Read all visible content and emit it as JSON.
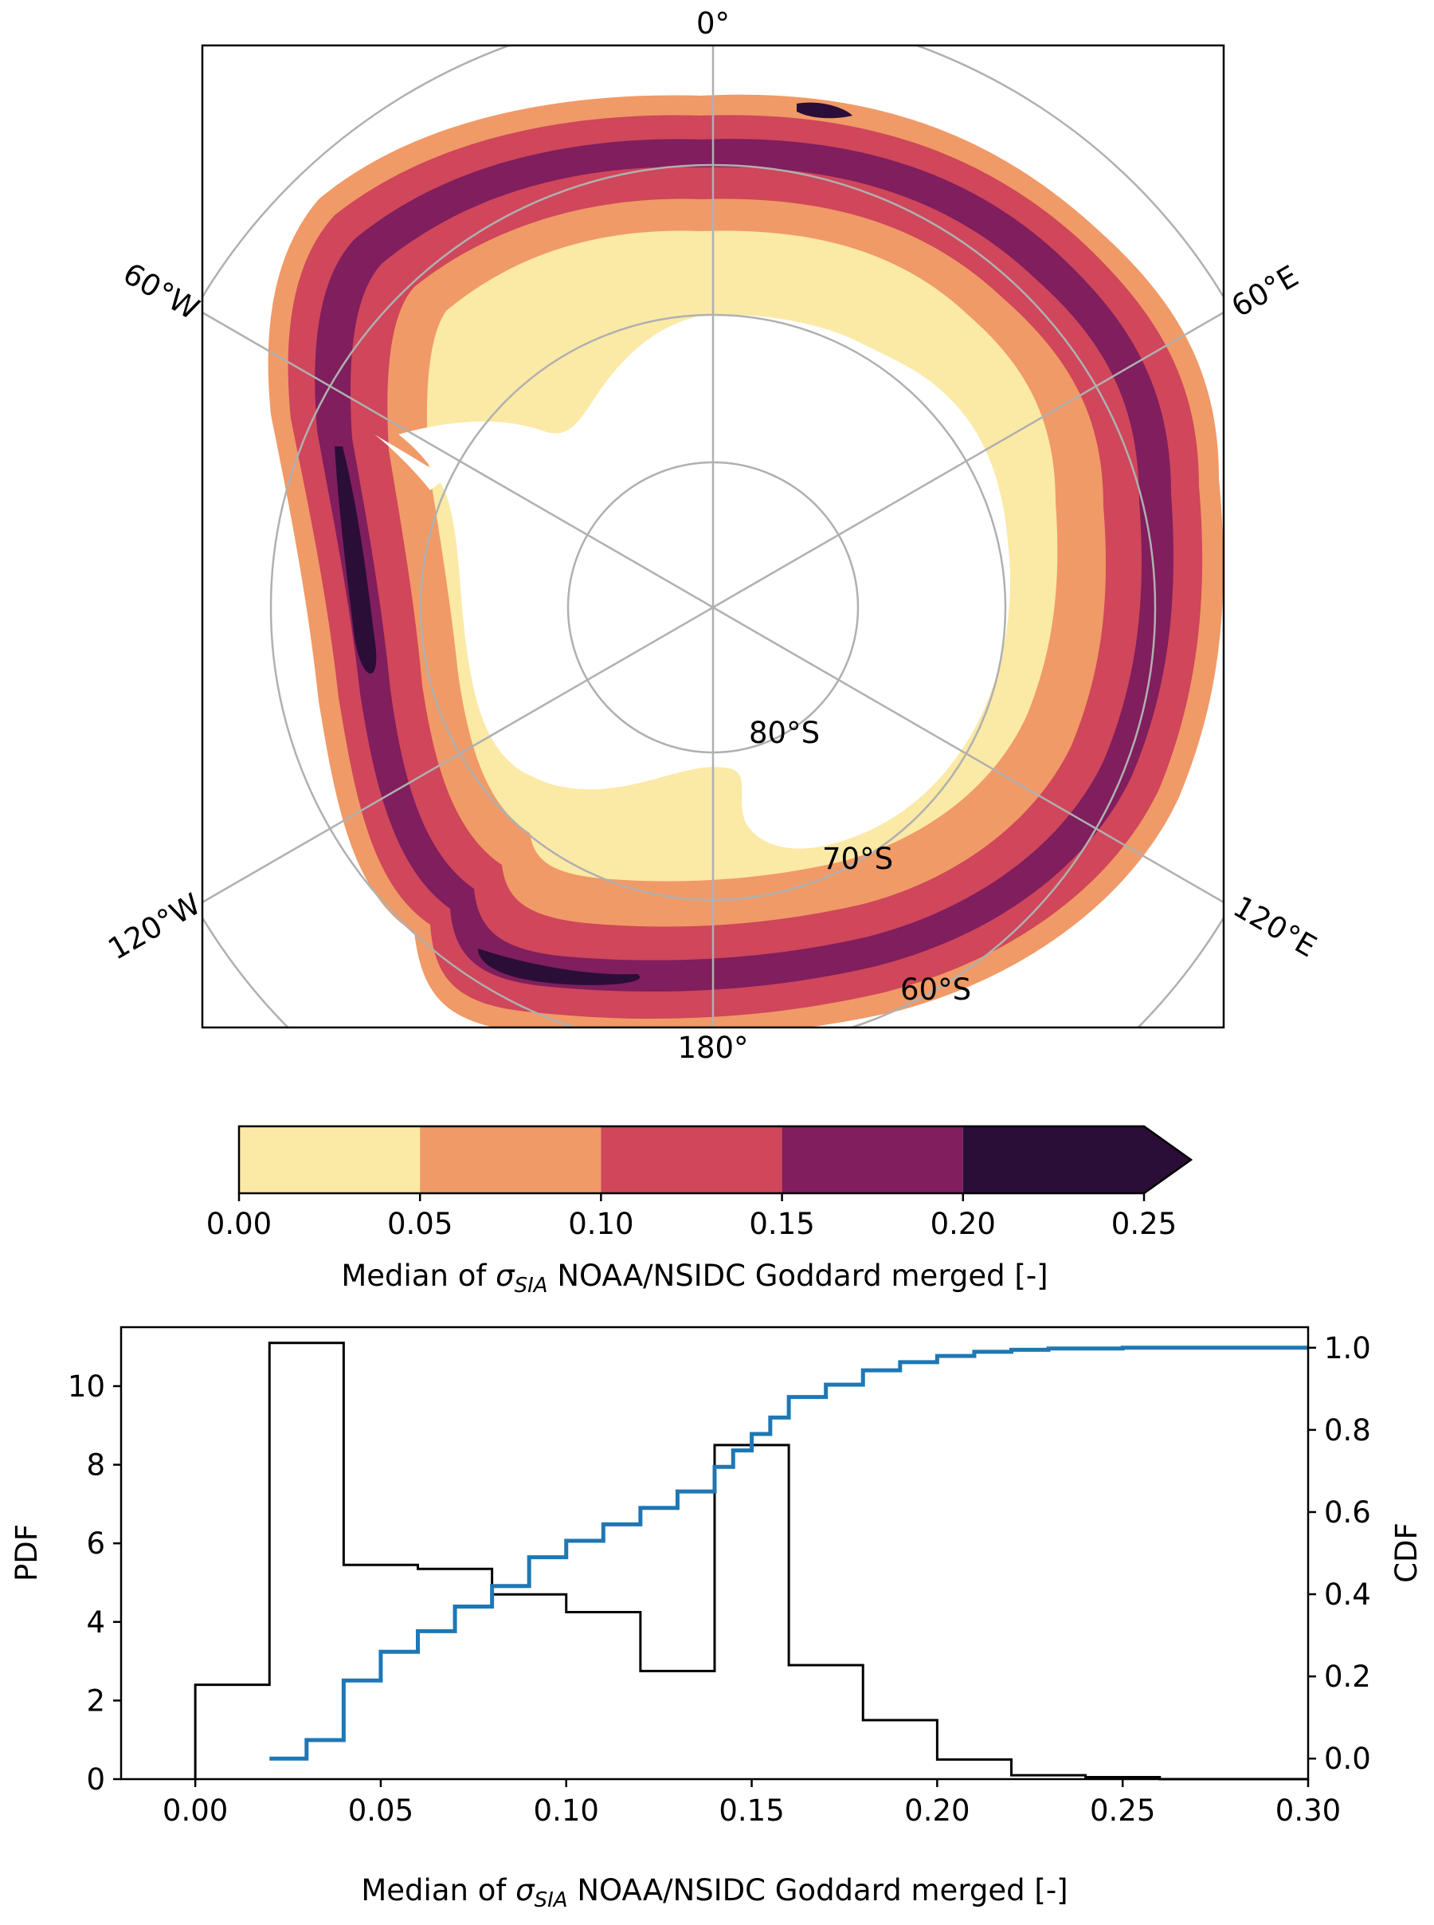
{
  "map": {
    "lon_labels": {
      "top": "0°",
      "upper_right": "60°E",
      "lower_right": "120°E",
      "bottom": "180°",
      "lower_left": "120°W",
      "upper_left": "60°W"
    },
    "lat_labels": [
      "80°S",
      "70°S",
      "60°S"
    ],
    "colors": {
      "frame": "#000000",
      "grid": "#b0b0b0",
      "background": "#ffffff"
    }
  },
  "colorbar": {
    "ticks": [
      "0.00",
      "0.05",
      "0.10",
      "0.15",
      "0.20",
      "0.25"
    ],
    "label_prefix": "Median of ",
    "label_symbol": "σ",
    "label_subscript": "SIA",
    "label_suffix": " NOAA/NSIDC Goddard merged [-]",
    "bins": [
      {
        "from": 0.0,
        "to": 0.05,
        "color": "#fbe9a6"
      },
      {
        "from": 0.05,
        "to": 0.1,
        "color": "#f09a67"
      },
      {
        "from": 0.1,
        "to": 0.15,
        "color": "#d0465a"
      },
      {
        "from": 0.15,
        "to": 0.2,
        "color": "#801e5e"
      },
      {
        "from": 0.2,
        "to": 0.25,
        "color": "#2a0e37"
      }
    ],
    "extend": "max"
  },
  "chart_data": {
    "type": "line",
    "xlabel_prefix": "Median of ",
    "xlabel_symbol": "σ",
    "xlabel_subscript": "SIA",
    "xlabel_suffix": " NOAA/NSIDC Goddard merged [-]",
    "ylabel_left": "PDF",
    "ylabel_right": "CDF",
    "xlim": [
      -0.02,
      0.3
    ],
    "ylim_left": [
      0,
      11.5
    ],
    "ylim_right": [
      -0.05,
      1.05
    ],
    "xticks": [
      0.0,
      0.05,
      0.1,
      0.15,
      0.2,
      0.25,
      0.3
    ],
    "xtick_labels": [
      "0.00",
      "0.05",
      "0.10",
      "0.15",
      "0.20",
      "0.25",
      "0.30"
    ],
    "yticks_left": [
      0,
      2,
      4,
      6,
      8,
      10
    ],
    "ytick_labels_left": [
      "0",
      "2",
      "4",
      "6",
      "8",
      "10"
    ],
    "yticks_right": [
      0.0,
      0.2,
      0.4,
      0.6,
      0.8,
      1.0
    ],
    "ytick_labels_right": [
      "0.0",
      "0.2",
      "0.4",
      "0.6",
      "0.8",
      "1.0"
    ],
    "series": [
      {
        "kind": "pdf_histogram",
        "color": "#000000",
        "bin_edges": [
          0.0,
          0.02,
          0.04,
          0.06,
          0.08,
          0.1,
          0.12,
          0.14,
          0.16,
          0.18,
          0.2,
          0.22,
          0.24,
          0.26,
          0.28,
          0.3
        ],
        "values": [
          2.4,
          11.1,
          5.45,
          5.35,
          4.7,
          4.25,
          2.75,
          8.5,
          2.9,
          1.5,
          0.5,
          0.1,
          0.05,
          0.0,
          0.0
        ]
      },
      {
        "kind": "cdf_step",
        "color": "#1f77b4",
        "x": [
          0.02,
          0.03,
          0.04,
          0.05,
          0.06,
          0.07,
          0.08,
          0.09,
          0.1,
          0.11,
          0.12,
          0.13,
          0.14,
          0.145,
          0.15,
          0.155,
          0.16,
          0.17,
          0.18,
          0.19,
          0.2,
          0.21,
          0.22,
          0.23,
          0.25,
          0.3
        ],
        "y": [
          0.0,
          0.045,
          0.19,
          0.26,
          0.31,
          0.37,
          0.42,
          0.49,
          0.53,
          0.57,
          0.61,
          0.65,
          0.71,
          0.75,
          0.79,
          0.83,
          0.88,
          0.91,
          0.945,
          0.965,
          0.98,
          0.99,
          0.995,
          0.998,
          1.0,
          1.0
        ]
      }
    ]
  }
}
